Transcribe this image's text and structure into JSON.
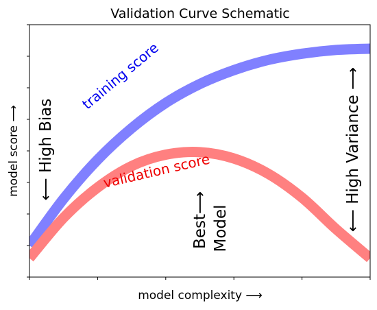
{
  "chart_data": {
    "type": "line",
    "title": "Validation Curve Schematic",
    "xlabel": "model complexity  ⟶",
    "ylabel": "model score  ⟶",
    "xlim": [
      0,
      1
    ],
    "ylim": [
      -0.1,
      1.9
    ],
    "grid": false,
    "series": [
      {
        "name": "training score",
        "color": "#8080ff",
        "label_color": "#0000ee",
        "x": [
          0,
          0.1,
          0.2,
          0.3,
          0.4,
          0.5,
          0.6,
          0.7,
          0.8,
          0.9,
          1.0
        ],
        "y": [
          0.15,
          0.52,
          0.83,
          1.08,
          1.28,
          1.43,
          1.54,
          1.62,
          1.67,
          1.7,
          1.71
        ]
      },
      {
        "name": "validation score",
        "color": "#ff8080",
        "label_color": "#ee0000",
        "x": [
          0,
          0.1,
          0.2,
          0.3,
          0.4,
          0.5,
          0.6,
          0.7,
          0.8,
          0.9,
          1.0
        ],
        "y": [
          0.05,
          0.37,
          0.61,
          0.78,
          0.87,
          0.89,
          0.84,
          0.72,
          0.53,
          0.28,
          0.05
        ]
      }
    ],
    "annotations": [
      {
        "name": "high-bias",
        "text": "⟵  High Bias"
      },
      {
        "name": "high-variance",
        "text": "⟵  High Variance  ⟶"
      },
      {
        "name": "best-model",
        "line1": "Best⟶",
        "line2": "Model"
      }
    ]
  }
}
